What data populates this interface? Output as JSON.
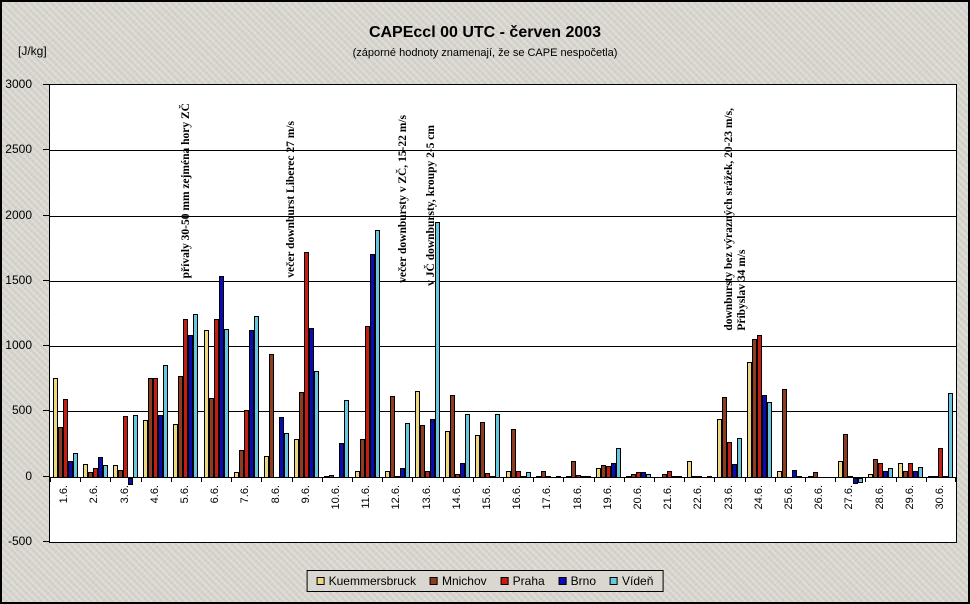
{
  "header": {
    "title": "CAPEccl 00 UTC - červen 2003",
    "subtitle": "(záporné hodnoty znamenají, že se CAPE nespočetla)",
    "y_axis_unit": "[J/kg]"
  },
  "chart_data": {
    "type": "bar",
    "title": "CAPEccl 00 UTC - červen 2003",
    "subtitle": "(záporné hodnoty znamenají, že se CAPE nespočetla)",
    "ylabel": "[J/kg]",
    "xlabel": "",
    "ylim": [
      -500,
      3000
    ],
    "ytick_step": 500,
    "ytick_labels": [
      "3000",
      "2500",
      "2000",
      "1500",
      "1000",
      "500",
      "0",
      "-500"
    ],
    "grid": true,
    "legend_position": "bottom",
    "categories": [
      "1.6.",
      "2.6.",
      "3.6.",
      "4.6.",
      "5.6.",
      "6.6.",
      "7.6.",
      "8.6.",
      "9.6.",
      "10.6.",
      "11.6.",
      "12.6.",
      "13.6.",
      "14.6.",
      "15.6.",
      "16.6.",
      "17.6.",
      "18.6.",
      "19.6.",
      "20.6.",
      "21.6.",
      "22.6.",
      "23.6.",
      "24.6.",
      "25.6.",
      "26.6.",
      "27.6.",
      "28.6.",
      "29.6.",
      "30.6."
    ],
    "series": [
      {
        "name": "Kuemmersbruck",
        "color": "#ecd87e",
        "values": [
          760,
          105,
          100,
          440,
          410,
          1130,
          40,
          165,
          300,
          10,
          50,
          50,
          665,
          355,
          330,
          50,
          10,
          10,
          75,
          5,
          0,
          130,
          450,
          890,
          55,
          5,
          130,
          25,
          115,
          5
        ]
      },
      {
        "name": "Mnichov",
        "color": "#8e3c20",
        "values": [
          390,
          40,
          60,
          760,
          780,
          610,
          215,
          945,
          660,
          20,
          295,
          625,
          405,
          630,
          430,
          370,
          55,
          125,
          95,
          25,
          30,
          15,
          620,
          1060,
          680,
          45,
          335,
          145,
          55,
          15
        ]
      },
      {
        "name": "Praha",
        "color": "#c41e14",
        "values": [
          600,
          75,
          470,
          765,
          1215,
          1215,
          515,
          0,
          1725,
          0,
          1160,
          15,
          55,
          25,
          35,
          55,
          15,
          20,
          90,
          45,
          50,
          5,
          270,
          1090,
          0,
          0,
          15,
          110,
          115,
          230
        ]
      },
      {
        "name": "Brno",
        "color": "#0b0bb4",
        "values": [
          125,
          155,
          -55,
          480,
          1095,
          1545,
          1135,
          465,
          1145,
          265,
          1710,
          75,
          450,
          115,
          10,
          5,
          0,
          5,
          115,
          40,
          10,
          0,
          105,
          630,
          60,
          0,
          -45,
          55,
          55,
          5
        ]
      },
      {
        "name": "Vídeň",
        "color": "#67c7de",
        "values": [
          190,
          95,
          480,
          860,
          1255,
          1140,
          1235,
          340,
          820,
          595,
          1895,
          420,
          1960,
          490,
          490,
          40,
          5,
          5,
          230,
          30,
          15,
          5,
          305,
          580,
          5,
          0,
          -40,
          75,
          80,
          650
        ]
      }
    ],
    "annotations": [
      {
        "lines": [
          "přívaly 30-50 mm zejména hory ZČ"
        ],
        "x": 136,
        "bottom": 264
      },
      {
        "lines": [
          "večer downburst Liberec 27 m/s"
        ],
        "x": 241,
        "bottom": 264
      },
      {
        "lines": [
          "večer downbursty v ZČ, 15-22 m/s"
        ],
        "x": 353,
        "bottom": 259
      },
      {
        "lines": [
          "v JČ downbursty, kroupy 2-5 cm"
        ],
        "x": 381,
        "bottom": 256
      },
      {
        "lines": [
          "downbursty bez výrazných srážek, 20-23 m/s,",
          "Příbyslav 34 m/s"
        ],
        "x": 686,
        "bottom": 211
      }
    ]
  }
}
